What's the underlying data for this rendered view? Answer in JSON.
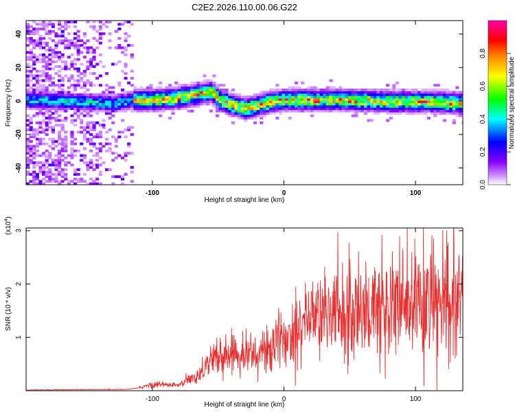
{
  "title": "C2E2.2026.110.00.06.G22",
  "chart_data": [
    {
      "type": "heatmap",
      "xlabel": "Height of straight line (km)",
      "ylabel": "Frequency (Hz)",
      "xlim": [
        -196,
        136
      ],
      "ylim": [
        -50,
        48
      ],
      "xticks": [
        -100,
        0,
        100
      ],
      "xtick_labels": [
        "-100",
        "0",
        "100"
      ],
      "yticks": [
        -40,
        -20,
        0,
        20,
        40
      ],
      "ytick_labels": [
        "-40",
        "-20",
        "0",
        "20",
        "40"
      ],
      "colorbar": {
        "label": "Normalized spectral amplitude",
        "range": [
          0,
          1
        ],
        "ticks": [
          0.0,
          0.2,
          0.4,
          0.6,
          0.8
        ],
        "tick_labels": [
          "0.0",
          "0.2",
          "0.4",
          "0.6",
          "0.8"
        ],
        "colormap": [
          "#ffffff",
          "#8800ff",
          "#0000ff",
          "#00ffff",
          "#00ff00",
          "#ffff00",
          "#ff8800",
          "#ff0000",
          "#ff00aa"
        ]
      },
      "ridge_center_hz": [
        [
          -196,
          0
        ],
        [
          -160,
          -1
        ],
        [
          -130,
          -2
        ],
        [
          -115,
          0
        ],
        [
          -100,
          0
        ],
        [
          -85,
          1
        ],
        [
          -70,
          3
        ],
        [
          -56,
          5
        ],
        [
          -50,
          0
        ],
        [
          -40,
          -3
        ],
        [
          -30,
          -5
        ],
        [
          -20,
          -3
        ],
        [
          -10,
          -1
        ],
        [
          0,
          0
        ],
        [
          20,
          0
        ],
        [
          50,
          0
        ],
        [
          80,
          -1
        ],
        [
          110,
          -1
        ],
        [
          136,
          -2
        ]
      ]
    },
    {
      "type": "line",
      "xlabel": "Height of straight line (km)",
      "ylabel": "SNR (10 * v/v)",
      "y_scale_label": "(x10",
      "y_scale_exp": "4",
      "xlim": [
        -196,
        136
      ],
      "ylim": [
        0,
        3.05
      ],
      "xticks": [
        -100,
        0,
        100
      ],
      "xtick_labels": [
        "-100",
        "0",
        "100"
      ],
      "yticks": [
        1,
        2,
        3
      ],
      "ytick_labels": [
        "1",
        "2",
        "3"
      ],
      "color": "#e83030",
      "envelope": [
        [
          -196,
          0.01
        ],
        [
          -120,
          0.02
        ],
        [
          -110,
          0.05
        ],
        [
          -100,
          0.12
        ],
        [
          -80,
          0.1
        ],
        [
          -65,
          0.3
        ],
        [
          -55,
          0.6
        ],
        [
          -45,
          0.65
        ],
        [
          -30,
          0.75
        ],
        [
          -20,
          0.65
        ],
        [
          -10,
          0.8
        ],
        [
          0,
          1.0
        ],
        [
          5,
          1.0
        ],
        [
          10,
          1.25
        ],
        [
          20,
          1.4
        ],
        [
          30,
          1.45
        ],
        [
          50,
          1.5
        ],
        [
          70,
          1.5
        ],
        [
          80,
          1.55
        ],
        [
          90,
          1.55
        ],
        [
          105,
          1.6
        ],
        [
          120,
          1.55
        ],
        [
          136,
          1.6
        ]
      ],
      "peaks": [
        [
          -38,
          1.05
        ],
        [
          -15,
          1.1
        ],
        [
          9,
          1.95
        ],
        [
          83,
          2.25
        ],
        [
          88,
          2.9
        ],
        [
          106,
          3.05
        ],
        [
          118,
          2.05
        ]
      ]
    }
  ]
}
